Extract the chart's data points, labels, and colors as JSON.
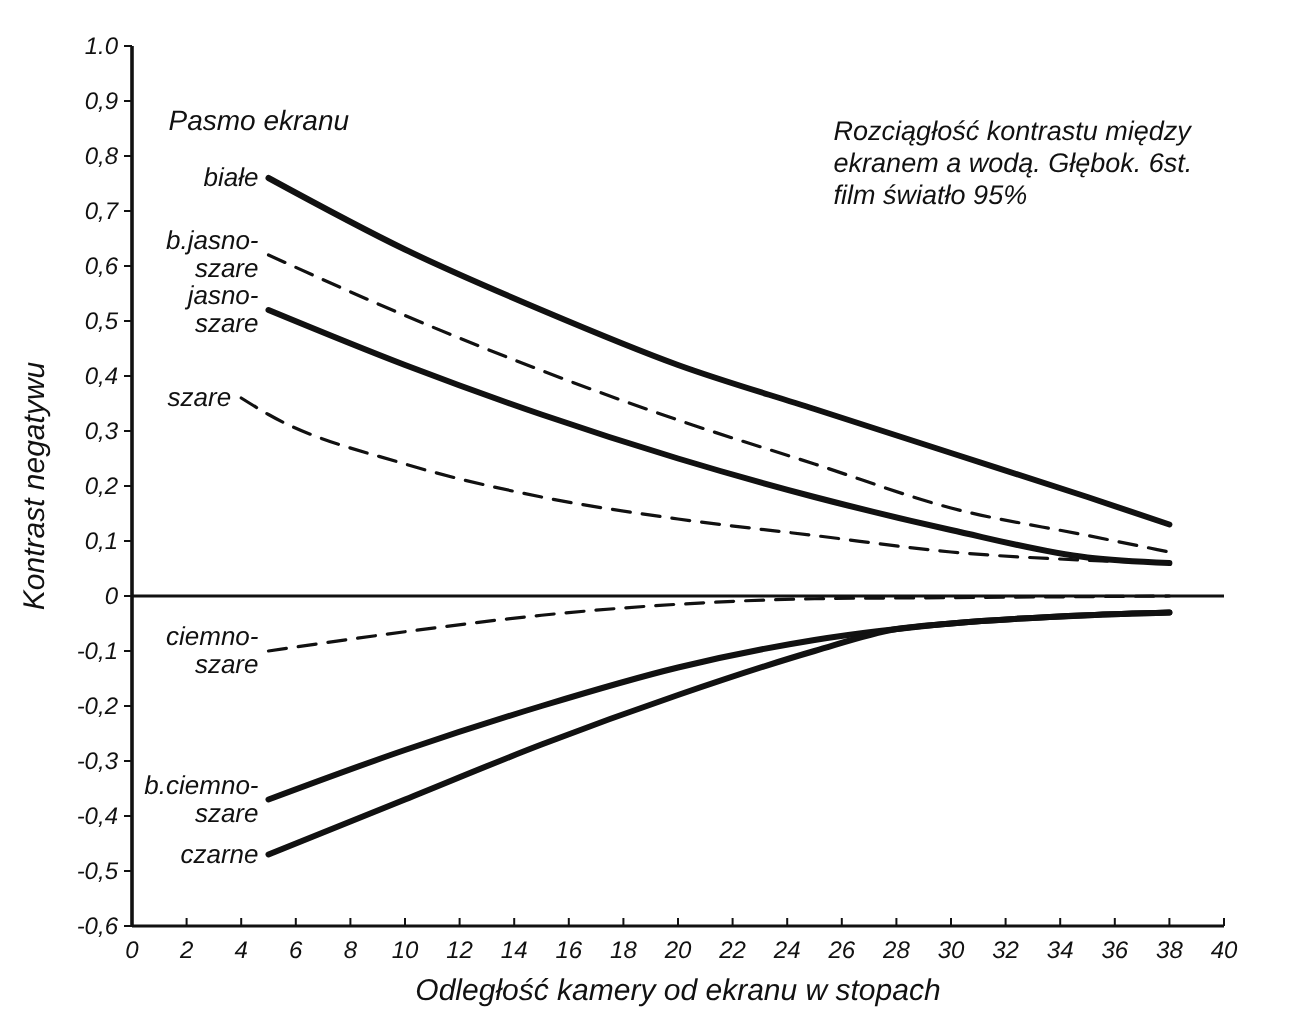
{
  "chart_data": {
    "type": "line",
    "xlabel": "Odległość kamery od ekranu w stopach",
    "ylabel": "Kontrast negatywu",
    "xlim": [
      0,
      40
    ],
    "xticks": [
      0,
      2,
      4,
      6,
      8,
      10,
      12,
      14,
      16,
      18,
      20,
      22,
      24,
      26,
      28,
      30,
      32,
      34,
      36,
      38,
      40
    ],
    "ylim": [
      -0.6,
      1.0
    ],
    "yticks": [
      {
        "value": 1.0,
        "label": "1.0"
      },
      {
        "value": 0.9,
        "label": "0,9"
      },
      {
        "value": 0.8,
        "label": "0,8"
      },
      {
        "value": 0.7,
        "label": "0,7"
      },
      {
        "value": 0.6,
        "label": "0,6"
      },
      {
        "value": 0.5,
        "label": "0,5"
      },
      {
        "value": 0.4,
        "label": "0,4"
      },
      {
        "value": 0.3,
        "label": "0,3"
      },
      {
        "value": 0.2,
        "label": "0,2"
      },
      {
        "value": 0.1,
        "label": "0,1"
      },
      0,
      {
        "value": -0.1,
        "label": "-0,1"
      },
      {
        "value": -0.2,
        "label": "-0,2"
      },
      {
        "value": -0.3,
        "label": "-0,3"
      },
      {
        "value": -0.4,
        "label": "-0,4"
      },
      {
        "value": -0.5,
        "label": "-0,5"
      },
      {
        "value": -0.6,
        "label": "-0,6"
      }
    ],
    "marker": "none",
    "ref_lines": [
      {
        "axis": "y",
        "value": 0,
        "color": "#111111"
      }
    ],
    "annotations": [
      "Pasmo ekranu",
      "Rozciągłość kontrastu między\nekranem a wodą. Głębok. 6st.\nfilm światło 95%"
    ],
    "series": [
      {
        "name": "białe",
        "color": "#111111",
        "line_style": "solid",
        "x": [
          5,
          10,
          15,
          20,
          25,
          30,
          35,
          38
        ],
        "values": [
          0.76,
          0.63,
          0.52,
          0.42,
          0.34,
          0.26,
          0.18,
          0.13
        ]
      },
      {
        "name": "b.jasno-szare",
        "color": "#111111",
        "line_style": "dashed",
        "x": [
          5,
          10,
          15,
          20,
          25,
          30,
          35,
          38
        ],
        "values": [
          0.62,
          0.51,
          0.41,
          0.32,
          0.24,
          0.16,
          0.11,
          0.08
        ]
      },
      {
        "name": "jasno-szare",
        "color": "#111111",
        "line_style": "solid",
        "x": [
          5,
          10,
          15,
          20,
          25,
          30,
          35,
          38
        ],
        "values": [
          0.52,
          0.42,
          0.33,
          0.25,
          0.18,
          0.12,
          0.07,
          0.06
        ]
      },
      {
        "name": "szare",
        "color": "#111111",
        "line_style": "dashed",
        "x": [
          4,
          5,
          10,
          15,
          20,
          25,
          30,
          35,
          38
        ],
        "values": [
          0.36,
          0.33,
          0.24,
          0.18,
          0.14,
          0.11,
          0.08,
          0.065,
          0.06
        ]
      },
      {
        "name": "ciemno-szare",
        "color": "#111111",
        "line_style": "dashed",
        "x": [
          5,
          10,
          15,
          20,
          25,
          30,
          38
        ],
        "values": [
          -0.1,
          -0.065,
          -0.035,
          -0.015,
          -0.005,
          -0.003,
          0
        ]
      },
      {
        "name": "b.ciemno-szare",
        "color": "#111111",
        "line_style": "solid",
        "x": [
          5,
          10,
          15,
          20,
          25,
          30,
          35,
          38
        ],
        "values": [
          -0.37,
          -0.28,
          -0.2,
          -0.13,
          -0.08,
          -0.05,
          -0.035,
          -0.03
        ]
      },
      {
        "name": "czarne",
        "color": "#111111",
        "line_style": "solid",
        "x": [
          5,
          10,
          15,
          20,
          25,
          28,
          30,
          35,
          38
        ],
        "values": [
          -0.47,
          -0.37,
          -0.27,
          -0.18,
          -0.1,
          -0.06,
          -0.05,
          -0.035,
          -0.03
        ]
      }
    ]
  }
}
